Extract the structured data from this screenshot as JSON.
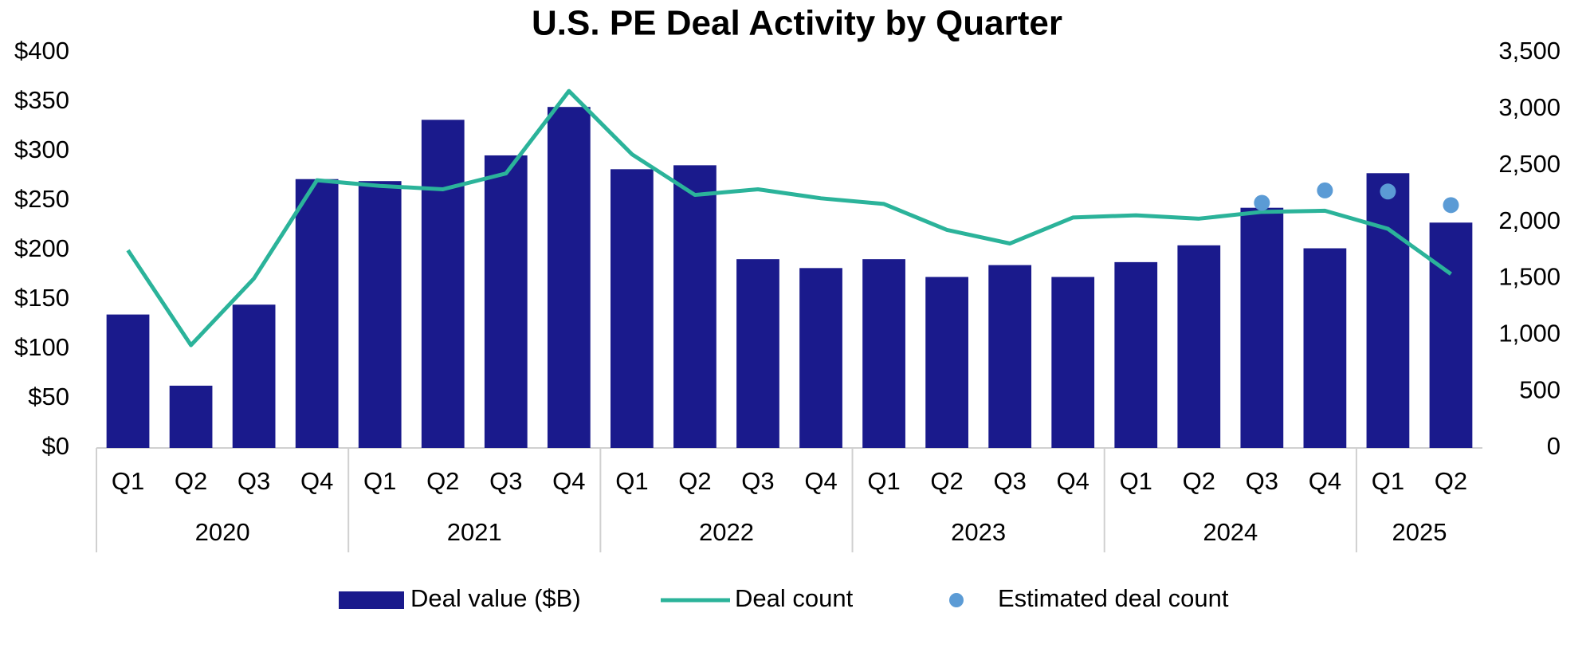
{
  "chart_data": {
    "type": "bar-line",
    "title": "U.S. PE Deal Activity by Quarter",
    "years": [
      {
        "label": "2020",
        "quarters": [
          "Q1",
          "Q2",
          "Q3",
          "Q4"
        ]
      },
      {
        "label": "2021",
        "quarters": [
          "Q1",
          "Q2",
          "Q3",
          "Q4"
        ]
      },
      {
        "label": "2022",
        "quarters": [
          "Q1",
          "Q2",
          "Q3",
          "Q4"
        ]
      },
      {
        "label": "2023",
        "quarters": [
          "Q1",
          "Q2",
          "Q3",
          "Q4"
        ]
      },
      {
        "label": "2024",
        "quarters": [
          "Q1",
          "Q2",
          "Q3",
          "Q4"
        ]
      },
      {
        "label": "2025",
        "quarters": [
          "Q1",
          "Q2"
        ]
      }
    ],
    "series": [
      {
        "name": "Deal value ($B)",
        "kind": "bar",
        "color": "#1a1a8c",
        "values": [
          135,
          63,
          145,
          272,
          270,
          332,
          296,
          345,
          282,
          286,
          191,
          182,
          191,
          173,
          185,
          173,
          188,
          205,
          243,
          202,
          278,
          228
        ]
      },
      {
        "name": "Deal count",
        "kind": "line",
        "axis": "y2",
        "color": "#2bb39a",
        "values": [
          1750,
          910,
          1500,
          2370,
          2320,
          2290,
          2430,
          3160,
          2600,
          2240,
          2290,
          2210,
          2160,
          1930,
          1810,
          2040,
          2060,
          2030,
          2090,
          2100,
          1940,
          1540
        ]
      },
      {
        "name": "Estimated deal count",
        "kind": "dot",
        "axis": "y2",
        "color": "#5b9bd5",
        "values": [
          null,
          null,
          null,
          null,
          null,
          null,
          null,
          null,
          null,
          null,
          null,
          null,
          null,
          null,
          null,
          null,
          null,
          null,
          2170,
          2280,
          2270,
          2150
        ]
      }
    ],
    "ylim": [
      0,
      400
    ],
    "yticks": [
      {
        "value": 0,
        "label": "$0"
      },
      {
        "value": 50,
        "label": "$50"
      },
      {
        "value": 100,
        "label": "$100"
      },
      {
        "value": 150,
        "label": "$150"
      },
      {
        "value": 200,
        "label": "$200"
      },
      {
        "value": 250,
        "label": "$250"
      },
      {
        "value": 300,
        "label": "$300"
      },
      {
        "value": 350,
        "label": "$350"
      },
      {
        "value": 400,
        "label": "$400"
      }
    ],
    "y2lim": [
      0,
      3500
    ],
    "y2ticks": [
      0,
      500,
      {
        "value": 1000,
        "label": "1,000"
      },
      {
        "value": 1500,
        "label": "1,500"
      },
      {
        "value": 2000,
        "label": "2,000"
      },
      {
        "value": 2500,
        "label": "2,500"
      },
      {
        "value": 3000,
        "label": "3,000"
      },
      {
        "value": 3500,
        "label": "3,500"
      }
    ],
    "grid": false,
    "legend": "bottom"
  }
}
